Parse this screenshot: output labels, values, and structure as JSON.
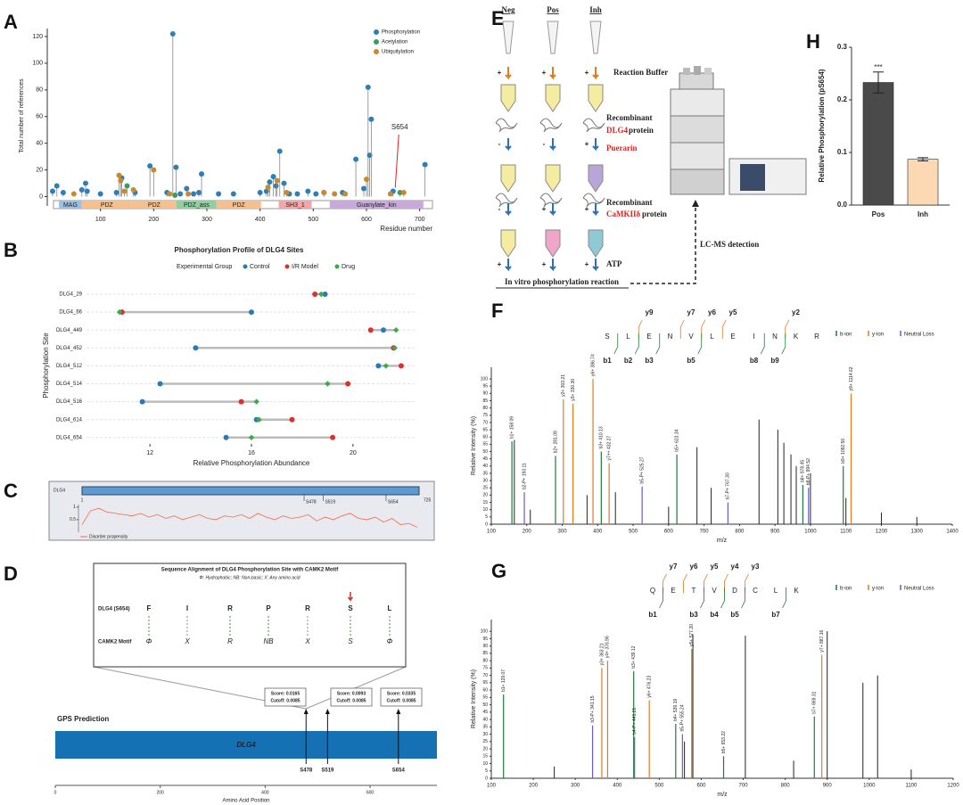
{
  "panel_labels": [
    "A",
    "B",
    "C",
    "D",
    "E",
    "F",
    "G",
    "H"
  ],
  "workflow": {
    "columns": [
      "Neg",
      "Pos",
      "Inh"
    ],
    "signs": [
      [
        "+",
        "+",
        "+"
      ],
      [
        "-",
        "-",
        "+"
      ],
      [
        "-",
        "+",
        "+"
      ],
      [
        "+",
        "+",
        "+"
      ]
    ],
    "labels": [
      "Reaction Buffer",
      "Recombinant",
      "DLG4",
      "protein",
      "Puerarin",
      "Recombinant",
      "CaMKIIδ",
      "protein",
      "ATP"
    ],
    "caption": "In vitro phosphorylation reaction",
    "detection": "LC-MS detection"
  },
  "alignment": {
    "title": "Sequence Alignment of DLG4 Phosphorylation Site with CAMK2 Motif",
    "subtitle": "Φ: Hydrophobic; NB: Non-basic; X: Any amino acid",
    "row_labels": [
      "DLG4 (S654)",
      "CAMK2 Motif"
    ],
    "dlg4": [
      "F",
      "I",
      "R",
      "P",
      "R",
      "S",
      "L"
    ],
    "dlg4_colors": [
      "#2e9a3e",
      "#888888",
      "#2e9a3e",
      "#2e9a3e",
      "#888888",
      "#2e9a3e",
      "#2e9a3e"
    ],
    "motif": [
      "Φ",
      "X",
      "R",
      "NB",
      "X",
      "S",
      "Φ"
    ],
    "motif_colors": [
      "#2f6fb5",
      "#222222",
      "#d9302c",
      "#8e44ad",
      "#222222",
      "#e8821e",
      "#2f6fb5"
    ]
  },
  "chart_data": [
    {
      "type": "lollipop",
      "ylabel": "Total number of references",
      "xlabel": "Residue number",
      "xlim": [
        0,
        724
      ],
      "ylim": [
        -7,
        126
      ],
      "xticks": [
        100,
        200,
        300,
        400,
        500,
        600,
        700
      ],
      "yticks": [
        0,
        20,
        40,
        60,
        80,
        100,
        120
      ],
      "series": [
        {
          "name": "Phosphorylation",
          "color": "#2e7fb4",
          "x": [
            10,
            18,
            30,
            65,
            72,
            75,
            100,
            130,
            140,
            165,
            193,
            225,
            236,
            242,
            250,
            262,
            275,
            285,
            290,
            322,
            350,
            400,
            412,
            418,
            425,
            430,
            437,
            445,
            455,
            470,
            490,
            505,
            520,
            555,
            580,
            595,
            603,
            606,
            609,
            650,
            710
          ],
          "values": [
            4,
            8,
            3,
            5,
            10,
            4,
            2,
            3,
            14,
            3,
            23,
            3,
            122,
            22,
            2,
            6,
            2,
            3,
            17,
            2,
            2,
            3,
            4,
            11,
            15,
            8,
            34,
            10,
            2,
            2,
            4,
            2,
            3,
            3,
            28,
            6,
            82,
            31,
            58,
            4,
            24
          ]
        },
        {
          "name": "Acetylation",
          "color": "#3a9a6b",
          "x": [
            150,
            240,
            663
          ],
          "values": [
            8,
            1,
            3
          ]
        },
        {
          "name": "Ubiquitylation",
          "color": "#c98a2e",
          "x": [
            50,
            135,
            138,
            145,
            162,
            200,
            230,
            265,
            415,
            432,
            450,
            520,
            540,
            560,
            600,
            645,
            670
          ],
          "values": [
            2,
            16,
            12,
            4,
            5,
            20,
            2,
            2,
            7,
            12,
            3,
            3,
            2,
            2,
            13,
            2,
            3
          ]
        }
      ],
      "domains": {
        "names": [
          "MAG",
          "PDZ",
          "PDZ",
          "PDZ_ass",
          "PDZ",
          "SH3_1",
          "Guanylate_kin"
        ],
        "start": [
          22,
          65,
          159,
          243,
          318,
          435,
          531
        ],
        "end": [
          65,
          159,
          243,
          318,
          402,
          497,
          707
        ],
        "colors": [
          "#9bc0e6",
          "#f6c08e",
          "#f6c08e",
          "#8fd19e",
          "#f6c08e",
          "#f4a6a6",
          "#c9a8dc"
        ]
      },
      "annotation": {
        "text": "S654",
        "x": 654,
        "y": 4
      }
    },
    {
      "type": "dotplot",
      "title": "Phosphorylation Profile of DLG4 Sites",
      "legend_title": "Experimental Group",
      "xlabel": "Relative Phosphorylation Abundance",
      "ylabel": "Phosphorylation Site",
      "xlim": [
        9.5,
        22.5
      ],
      "xticks": [
        12,
        16,
        20
      ],
      "categories": [
        "DLG4_29",
        "DLG4_66",
        "DLG4_449",
        "DLG4_452",
        "DLG4_512",
        "DLG4_514",
        "DLG4_516",
        "DLG4_614",
        "DLG4_654"
      ],
      "series": [
        {
          "name": "Control",
          "color": "#2a7ab6",
          "shape": "circle",
          "values": [
            18.9,
            16.0,
            21.2,
            13.8,
            21.0,
            12.4,
            11.7,
            16.2,
            15.0
          ]
        },
        {
          "name": "I/R Model",
          "color": "#d8312e",
          "shape": "circle",
          "values": [
            18.5,
            10.9,
            20.7,
            21.6,
            21.9,
            19.8,
            15.6,
            17.6,
            19.2
          ]
        },
        {
          "name": "Drug",
          "color": "#3ea84a",
          "shape": "diamond",
          "values": [
            18.75,
            10.8,
            21.7,
            21.65,
            21.3,
            19.0,
            16.2,
            16.3,
            16.0
          ]
        }
      ]
    },
    {
      "type": "line",
      "protein": "DLG4",
      "xlim": [
        1,
        725
      ],
      "ylim": [
        0,
        1.1
      ],
      "yticks": [
        0.5,
        1
      ],
      "sites": {
        "names": [
          "S478",
          "S519",
          "S654"
        ],
        "x": [
          478,
          519,
          654
        ]
      },
      "series": [
        {
          "name": "Disorder propensity",
          "color": "#ef6a4a",
          "x": [
            1,
            19,
            37,
            55,
            73,
            91,
            109,
            127,
            145,
            163,
            181,
            199,
            217,
            235,
            253,
            271,
            289,
            307,
            325,
            343,
            361,
            379,
            397,
            415,
            433,
            451,
            469,
            487,
            505,
            523,
            541,
            559,
            577,
            595,
            613,
            631,
            649,
            667,
            685,
            703,
            721
          ],
          "values": [
            0.3,
            0.85,
            0.95,
            0.8,
            0.75,
            0.7,
            0.65,
            0.75,
            0.6,
            0.7,
            0.55,
            0.65,
            0.5,
            0.6,
            0.7,
            0.55,
            0.5,
            0.65,
            0.6,
            0.7,
            0.55,
            0.75,
            0.6,
            0.5,
            0.65,
            0.55,
            0.6,
            0.7,
            0.45,
            0.6,
            0.5,
            0.65,
            0.75,
            0.55,
            0.5,
            0.6,
            0.4,
            0.55,
            0.3,
            0.35,
            0.2
          ]
        }
      ]
    },
    {
      "type": "sites",
      "title": "GPS Prediction",
      "protein": "DLG4",
      "xlim": [
        0,
        724
      ],
      "xticks": [
        0,
        200,
        400,
        600
      ],
      "xlabel": "Amino Acid Position",
      "sites": {
        "names": [
          "S478",
          "S519",
          "S654"
        ],
        "x": [
          478,
          519,
          654
        ],
        "score_labels": [
          "Score: 0.0165",
          "Score: 0.0093",
          "Score: 0.0335"
        ],
        "cutoff_labels": [
          "Cutoff: 0.0085",
          "Cutoff: 0.0085",
          "Cutoff: 0.0085"
        ]
      }
    },
    {
      "type": "spectrum",
      "sequence": [
        "S",
        "L",
        "E",
        "N",
        "V",
        "L",
        "E",
        "I",
        "N",
        "K",
        "R"
      ],
      "sequence_colors": [
        "#e02020",
        "#111",
        "#111",
        "#111",
        "#111",
        "#111",
        "#111",
        "#111",
        "#111",
        "#111",
        "#111"
      ],
      "y_ions": [
        "y9",
        "y7",
        "y6",
        "y5",
        "y2"
      ],
      "b_ions": [
        "b1",
        "b2",
        "b3",
        "b5",
        "b8",
        "b9"
      ],
      "xlabel": "m/z",
      "ylabel": "Relative Intensity (%)",
      "xlim": [
        100,
        1400
      ],
      "ylim": [
        0,
        108
      ],
      "xticks": [
        100,
        200,
        300,
        400,
        500,
        600,
        700,
        800,
        900,
        1000,
        1100,
        1200,
        1300,
        1400
      ],
      "yticks": [
        0,
        5,
        10,
        15,
        20,
        25,
        30,
        35,
        40,
        45,
        50,
        55,
        60,
        65,
        70,
        75,
        80,
        85,
        90,
        95,
        100
      ],
      "series": [
        {
          "name": "b-ion",
          "color": "#1f7a3a",
          "x": [
            158.09,
            281.09,
            410.13,
            623.34,
            978.45,
            1092.5
          ],
          "values": [
            57,
            47,
            50,
            48,
            27,
            40
          ],
          "labels": [
            "b1+ 158.09",
            "b2+ 281.09",
            "b3+ 410.13",
            "b5+ 623.34",
            "b8+ 978.45",
            "b9+ 1092.50"
          ]
        },
        {
          "name": "y-ion",
          "color": "#e07b22",
          "x": [
            303.21,
            330.3,
            386.74,
            432.27,
            1114.62
          ],
          "values": [
            86,
            83,
            100,
            42,
            90
          ],
          "labels": [
            "y2+ 303.21",
            "y3+ 330.30",
            "y6+ 386.74",
            "y7++ 432.27",
            "y9+ 1114.62"
          ]
        },
        {
          "name": "Neutral Loss",
          "color": "#6a5acd",
          "x": [
            193.11,
            525.27,
            767.3,
            994.52
          ],
          "values": [
            22,
            26,
            15,
            25
          ],
          "labels": [
            "b2-P+ 193.11",
            "b5-P+ 525.27",
            "b7-P+ 767.30",
            "b8-P+ 994.52"
          ]
        }
      ],
      "peaks": {
        "x": [
          165,
          210,
          370,
          450,
          600,
          680,
          720,
          855,
          908,
          925,
          945,
          960,
          1000,
          1100,
          1200,
          1300
        ],
        "values": [
          58,
          10,
          20,
          22,
          12,
          53,
          25,
          72,
          65,
          56,
          48,
          40,
          35,
          18,
          8,
          5
        ]
      }
    },
    {
      "type": "spectrum",
      "sequence": [
        "Q",
        "E",
        "T",
        "V",
        "D",
        "C",
        "L",
        "K"
      ],
      "sequence_colors": [
        "#111",
        "#111",
        "#e02020",
        "#111",
        "#111",
        "#111",
        "#111",
        "#111"
      ],
      "y_ions": [
        "y7",
        "y6",
        "y5",
        "y4",
        "y3"
      ],
      "b_ions": [
        "b1",
        "b3",
        "b4",
        "b5",
        "b7"
      ],
      "xlabel": "m/z",
      "ylabel": "Relative Intensity (%)",
      "xlim": [
        100,
        1200
      ],
      "ylim": [
        0,
        108
      ],
      "xticks": [
        100,
        200,
        300,
        400,
        500,
        600,
        700,
        800,
        900,
        1000,
        1100,
        1200
      ],
      "yticks": [
        0,
        5,
        10,
        15,
        20,
        25,
        30,
        35,
        40,
        45,
        50,
        55,
        60,
        65,
        70,
        75,
        80,
        85,
        90,
        95,
        100
      ],
      "series": [
        {
          "name": "b-ion",
          "color": "#1f7a3a",
          "x": [
            129.07,
            439.12,
            539.19,
            653.22,
            869.31
          ],
          "values": [
            57,
            73,
            37,
            15,
            42
          ],
          "labels": [
            "b1+ 129.07",
            "b3+ 439.12",
            "b4+ 539.19",
            "b5+ 653.22",
            "b7+ 869.31"
          ]
        },
        {
          "name": "y-ion",
          "color": "#e07b22",
          "x": [
            363.21,
            376.96,
            476.23,
            577.2,
            887.16
          ],
          "values": [
            75,
            80,
            53,
            88,
            84
          ],
          "labels": [
            "y3+ 363.21",
            "y4+ 376.96",
            "y6+ 476.23",
            "y5+ 577.20",
            "y7+ 887.16"
          ]
        },
        {
          "name": "Neutral Loss",
          "color": "#6a5acd",
          "x": [
            341.15,
            441.21,
            555.24
          ],
          "values": [
            36,
            28,
            30
          ],
          "labels": [
            "b3-P+ 341.15",
            "b4-P+ 441.21",
            "b5-P+ 555.24"
          ]
        }
      ],
      "peaks": {
        "x": [
          250,
          560,
          580,
          705,
          820,
          900,
          985,
          1020,
          1100
        ],
        "values": [
          8,
          25,
          98,
          97,
          12,
          100,
          65,
          70,
          6
        ]
      }
    },
    {
      "type": "bar",
      "ylabel": "Relative Phosphorylation (pS654)",
      "categories": [
        "Pos",
        "Inh"
      ],
      "values": [
        0.233,
        0.087
      ],
      "errors": [
        0.02,
        0.003
      ],
      "colors": [
        "#4a4a4a",
        "#fcd9b2"
      ],
      "ylim": [
        0,
        0.3
      ],
      "yticks": [
        {
          "value": 0,
          "label": "0.0"
        },
        0.1,
        0.2,
        0.3
      ],
      "annotations": [
        "***",
        null
      ]
    }
  ]
}
